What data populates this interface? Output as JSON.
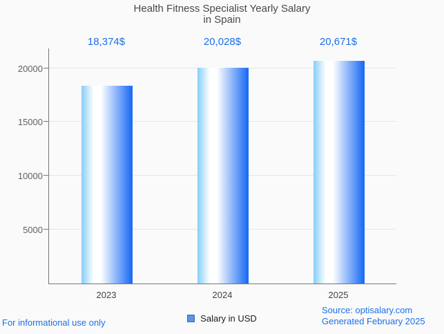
{
  "title": {
    "line1": "Health Fitness Specialist Yearly Salary",
    "line2": "in Spain"
  },
  "chart_data": {
    "type": "bar",
    "categories": [
      "2023",
      "2024",
      "2025"
    ],
    "values": [
      18374,
      20028,
      20671
    ],
    "value_labels": [
      "18,374$",
      "20,028$",
      "20,671$"
    ],
    "title": "Health Fitness Specialist Yearly Salary in Spain",
    "xlabel": "",
    "ylabel": "",
    "y_ticks": [
      5000,
      10000,
      15000,
      20000
    ],
    "ylim": [
      0,
      21900
    ],
    "grid": true,
    "legend_position": "bottom",
    "series": [
      {
        "name": "Salary in USD",
        "values": [
          18374,
          20028,
          20671
        ]
      }
    ]
  },
  "legend": {
    "label": "Salary in USD"
  },
  "footer": {
    "disclaimer": "For informational use only",
    "source": "Source: optisalary.com",
    "generated": "Generated February 2025"
  },
  "colors": {
    "background": "#fafafa",
    "title_text": "#484848",
    "value_label_text": "#1c6fe8",
    "link_text": "#1c6fe8",
    "axis_line": "#757575",
    "gridline": "#e6e6e6",
    "y_label_text": "#616161",
    "x_label_text": "#424242",
    "bar_gradient": [
      "#87cefa",
      "#ffffff",
      "#1567f4"
    ],
    "legend_swatch": "#5596e3",
    "legend_swatch_border": "#3a6cb3"
  }
}
